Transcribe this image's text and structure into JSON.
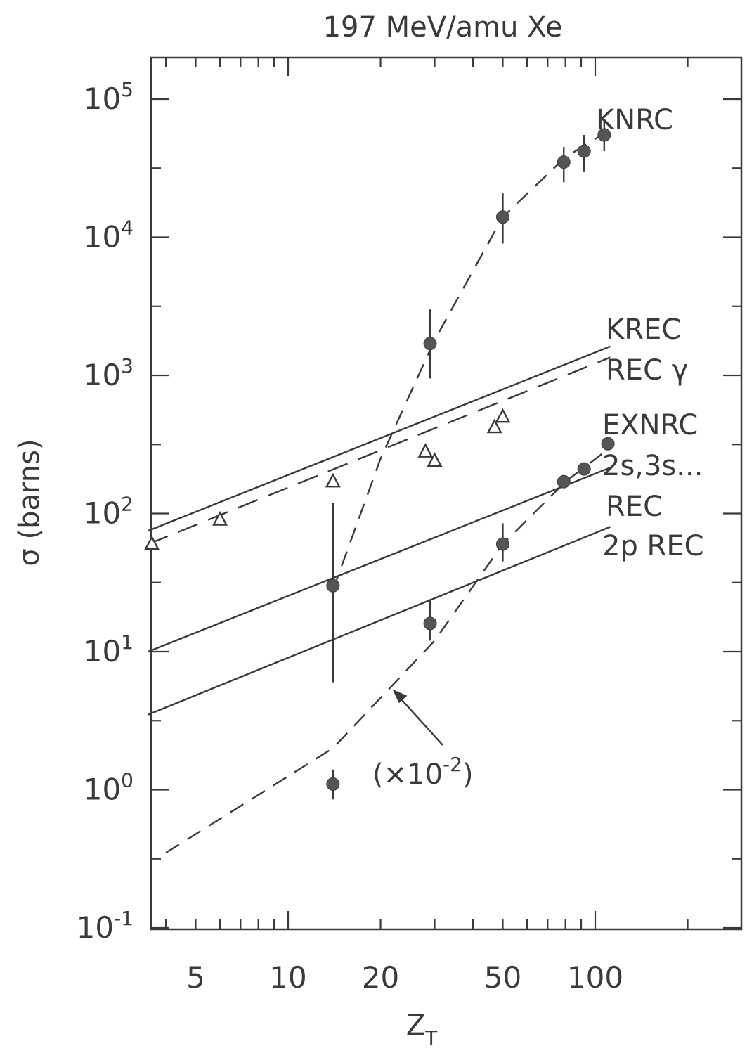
{
  "chart_data": {
    "type": "scatter",
    "title": "197 MeV/amu Xe",
    "xlabel": "Z",
    "xlabel_sub": "T",
    "ylabel": "σ  (barns)",
    "x_scale": "log",
    "y_scale": "log",
    "xlim": [
      3.5,
      250
    ],
    "ylim": [
      0.1,
      200000
    ],
    "x_ticks": [
      {
        "value": 5,
        "label": "5"
      },
      {
        "value": 10,
        "label": "10"
      },
      {
        "value": 20,
        "label": "20"
      },
      {
        "value": 50,
        "label": "50"
      },
      {
        "value": 100,
        "label": "100"
      }
    ],
    "y_ticks": [
      {
        "value": 0.1,
        "base": "10",
        "exp": "-1"
      },
      {
        "value": 1,
        "base": "10",
        "exp": "0"
      },
      {
        "value": 10,
        "base": "10",
        "exp": "1"
      },
      {
        "value": 100,
        "base": "10",
        "exp": "2"
      },
      {
        "value": 1000,
        "base": "10",
        "exp": "3"
      },
      {
        "value": 10000,
        "base": "10",
        "exp": "4"
      },
      {
        "value": 100000,
        "base": "10",
        "exp": "5"
      }
    ],
    "grid": false,
    "series": [
      {
        "name": "KNRC",
        "style": "dashed-curve",
        "marker": "filled-circle",
        "curve": [
          [
            14,
            28
          ],
          [
            20,
            250
          ],
          [
            30,
            1800
          ],
          [
            50,
            14000
          ],
          [
            80,
            38000
          ],
          [
            112,
            60000
          ]
        ],
        "points": [
          {
            "x": 14,
            "y": 30,
            "err": [
              6,
              120
            ]
          },
          {
            "x": 29,
            "y": 1700,
            "err": [
              950,
              3000
            ]
          },
          {
            "x": 50,
            "y": 14000,
            "err": [
              9000,
              21000
            ]
          },
          {
            "x": 79,
            "y": 35000,
            "err": [
              25000,
              45000
            ]
          },
          {
            "x": 92,
            "y": 42000,
            "err": [
              30000,
              55000
            ]
          },
          {
            "x": 107,
            "y": 55000,
            "err": [
              42000,
              68000
            ]
          }
        ]
      },
      {
        "name": "KREC",
        "style": "solid",
        "marker": "none",
        "curve": [
          [
            3.5,
            75
          ],
          [
            112,
            1620
          ]
        ]
      },
      {
        "name": "REC γ",
        "style": "long-dash",
        "marker": "open-triangle",
        "curve": [
          [
            3.5,
            60
          ],
          [
            112,
            1350
          ]
        ],
        "points": [
          {
            "x": 3.6,
            "y": 60
          },
          {
            "x": 6,
            "y": 90
          },
          {
            "x": 14,
            "y": 170
          },
          {
            "x": 28,
            "y": 280
          },
          {
            "x": 30,
            "y": 240
          },
          {
            "x": 47,
            "y": 420
          },
          {
            "x": 50,
            "y": 500
          }
        ]
      },
      {
        "name": "EXNRC 2s,3s...",
        "style": "dashed-curve",
        "marker": "filled-circle",
        "curve": [
          [
            4,
            0.35
          ],
          [
            14,
            2
          ],
          [
            30,
            12
          ],
          [
            50,
            60
          ],
          [
            80,
            170
          ],
          [
            112,
            300
          ]
        ],
        "points": [
          {
            "x": 14,
            "y": 1.1,
            "err": [
              0.85,
              1.4
            ]
          },
          {
            "x": 29,
            "y": 16,
            "err": [
              12,
              24
            ]
          },
          {
            "x": 50,
            "y": 60,
            "err": [
              45,
              85
            ]
          },
          {
            "x": 79,
            "y": 170
          },
          {
            "x": 92,
            "y": 210
          },
          {
            "x": 110,
            "y": 320
          }
        ]
      },
      {
        "name": "REC",
        "style": "solid",
        "marker": "none",
        "curve": [
          [
            3.5,
            10
          ],
          [
            112,
            215
          ]
        ]
      },
      {
        "name": "2p REC",
        "style": "solid",
        "marker": "none",
        "curve": [
          [
            3.5,
            3.5
          ],
          [
            112,
            80
          ]
        ]
      }
    ],
    "annotations": [
      {
        "text": "(×10",
        "sup": "-2",
        "close": ")"
      }
    ]
  }
}
